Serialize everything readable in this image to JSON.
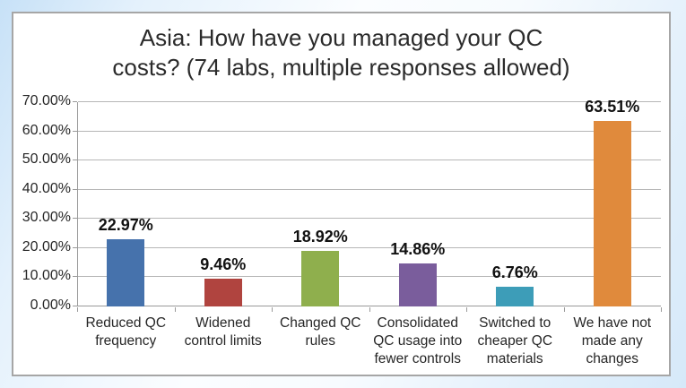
{
  "chart_data": {
    "type": "bar",
    "title": "Asia: How have you managed your QC\ncosts? (74 labs, multiple responses allowed)",
    "categories": [
      "Reduced QC\nfrequency",
      "Widened\ncontrol limits",
      "Changed QC\nrules",
      "Consolidated\nQC usage into\nfewer controls",
      "Switched to\ncheaper QC\nmaterials",
      "We have not\nmade any\nchanges"
    ],
    "values": [
      22.97,
      9.46,
      18.92,
      14.86,
      6.76,
      63.51
    ],
    "value_labels": [
      "22.97%",
      "9.46%",
      "18.92%",
      "14.86%",
      "6.76%",
      "63.51%"
    ],
    "bar_colors": [
      "#4672AC",
      "#B0443F",
      "#8FAF4D",
      "#7A5D9C",
      "#3D9DB8",
      "#E08A3C"
    ],
    "y_ticks": [
      "0.00%",
      "10.00%",
      "20.00%",
      "30.00%",
      "40.00%",
      "50.00%",
      "60.00%",
      "70.00%"
    ],
    "ylim": [
      0,
      70
    ],
    "y_tick_step": 10,
    "grid": true,
    "legend": "none",
    "xlabel": "",
    "ylabel": ""
  },
  "style": {
    "title_color": "#2b2b2b",
    "axis_text_color": "#262626",
    "value_label_color": "#111111",
    "gridline_color": "#b6b6b6",
    "axis_line_color": "#9a9a9a",
    "chart_background": "#ffffff",
    "chart_border": "#a6a6a6",
    "frame_blue": "#cbe3f8"
  }
}
